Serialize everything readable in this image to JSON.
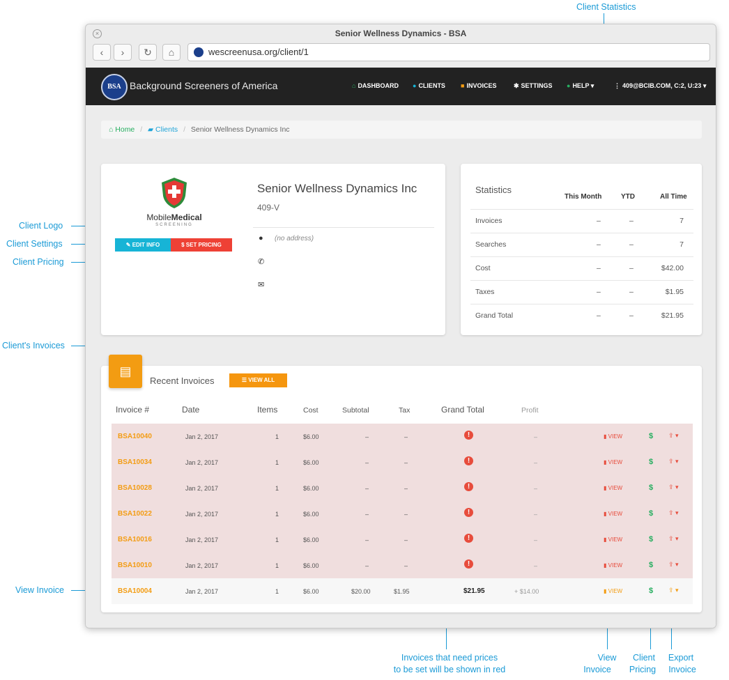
{
  "annotations": {
    "client_statistics": "Client Statistics",
    "client_logo": "Client Logo",
    "client_settings": "Client Settings",
    "client_pricing": "Client Pricing",
    "clients_invoices": "Client's Invoices",
    "view_invoice": "View Invoice",
    "red_note_line1": "Invoices that need prices",
    "red_note_line2": "to be set will be shown in red",
    "bottom_view_1": "View",
    "bottom_view_2": "Invoice",
    "bottom_pricing_1": "Client",
    "bottom_pricing_2": "Pricing",
    "bottom_export_1": "Export",
    "bottom_export_2": "Invoice"
  },
  "browser": {
    "title": "Senior Wellness Dynamics - BSA",
    "url": "wescreenusa.org/client/1"
  },
  "nav": {
    "logo_text": "BSA",
    "brand": "Background Screeners of America",
    "items": [
      {
        "label": "DASHBOARD",
        "icon": "home-icon"
      },
      {
        "label": "CLIENTS",
        "icon": "user-icon"
      },
      {
        "label": "INVOICES",
        "icon": "invoices-icon"
      },
      {
        "label": "SETTINGS",
        "icon": "gear-icon"
      },
      {
        "label": "HELP",
        "icon": "help-icon"
      },
      {
        "label": "409@BCIB.COM, C:2, U:23",
        "icon": "kebab-icon"
      }
    ]
  },
  "breadcrumb": {
    "home": "Home",
    "clients": "Clients",
    "current": "Senior Wellness Dynamics Inc"
  },
  "client": {
    "logo_word1": "Mobile",
    "logo_word2": "Medical",
    "logo_sub": "SCREENING",
    "name": "Senior Wellness Dynamics Inc",
    "code": "409-V",
    "address": "(no address)",
    "edit_label": "EDIT INFO",
    "pricing_label": "$ SET PRICING"
  },
  "statistics": {
    "title": "Statistics",
    "col_month": "This Month",
    "col_ytd": "YTD",
    "col_all": "All Time",
    "rows": [
      {
        "label": "Invoices",
        "month": "–",
        "ytd": "–",
        "all": "7"
      },
      {
        "label": "Searches",
        "month": "–",
        "ytd": "–",
        "all": "7"
      },
      {
        "label": "Cost",
        "month": "–",
        "ytd": "–",
        "all": "$42.00"
      },
      {
        "label": "Taxes",
        "month": "–",
        "ytd": "–",
        "all": "$1.95"
      },
      {
        "label": "Grand Total",
        "month": "–",
        "ytd": "–",
        "all": "$21.95"
      }
    ]
  },
  "invoices": {
    "title": "Recent Invoices",
    "view_all": "VIEW ALL",
    "headers": {
      "number": "Invoice #",
      "date": "Date",
      "items": "Items",
      "cost": "Cost",
      "subtotal": "Subtotal",
      "tax": "Tax",
      "grand_total": "Grand Total",
      "profit": "Profit"
    },
    "view_label": "VIEW",
    "alert_glyph": "!",
    "dollar_glyph": "$",
    "rows": [
      {
        "number": "BSA10040",
        "date": "Jan 2, 2017",
        "items": "1",
        "cost": "$6.00",
        "subtotal": "–",
        "tax": "–",
        "profit": "–",
        "needs_price": true
      },
      {
        "number": "BSA10034",
        "date": "Jan 2, 2017",
        "items": "1",
        "cost": "$6.00",
        "subtotal": "–",
        "tax": "–",
        "profit": "–",
        "needs_price": true
      },
      {
        "number": "BSA10028",
        "date": "Jan 2, 2017",
        "items": "1",
        "cost": "$6.00",
        "subtotal": "–",
        "tax": "–",
        "profit": "–",
        "needs_price": true
      },
      {
        "number": "BSA10022",
        "date": "Jan 2, 2017",
        "items": "1",
        "cost": "$6.00",
        "subtotal": "–",
        "tax": "–",
        "profit": "–",
        "needs_price": true
      },
      {
        "number": "BSA10016",
        "date": "Jan 2, 2017",
        "items": "1",
        "cost": "$6.00",
        "subtotal": "–",
        "tax": "–",
        "profit": "–",
        "needs_price": true
      },
      {
        "number": "BSA10010",
        "date": "Jan 2, 2017",
        "items": "1",
        "cost": "$6.00",
        "subtotal": "–",
        "tax": "–",
        "profit": "–",
        "needs_price": true
      },
      {
        "number": "BSA10004",
        "date": "Jan 2, 2017",
        "items": "1",
        "cost": "$6.00",
        "subtotal": "$20.00",
        "tax": "$1.95",
        "grand_total": "$21.95",
        "profit": "+ $14.00",
        "needs_price": false
      }
    ]
  },
  "colors": {
    "accent_orange": "#f39c12",
    "danger_red": "#e74c3c",
    "info_blue": "#17b4d6",
    "annotation_blue": "#1a9ad6",
    "success_green": "#27ae60"
  }
}
